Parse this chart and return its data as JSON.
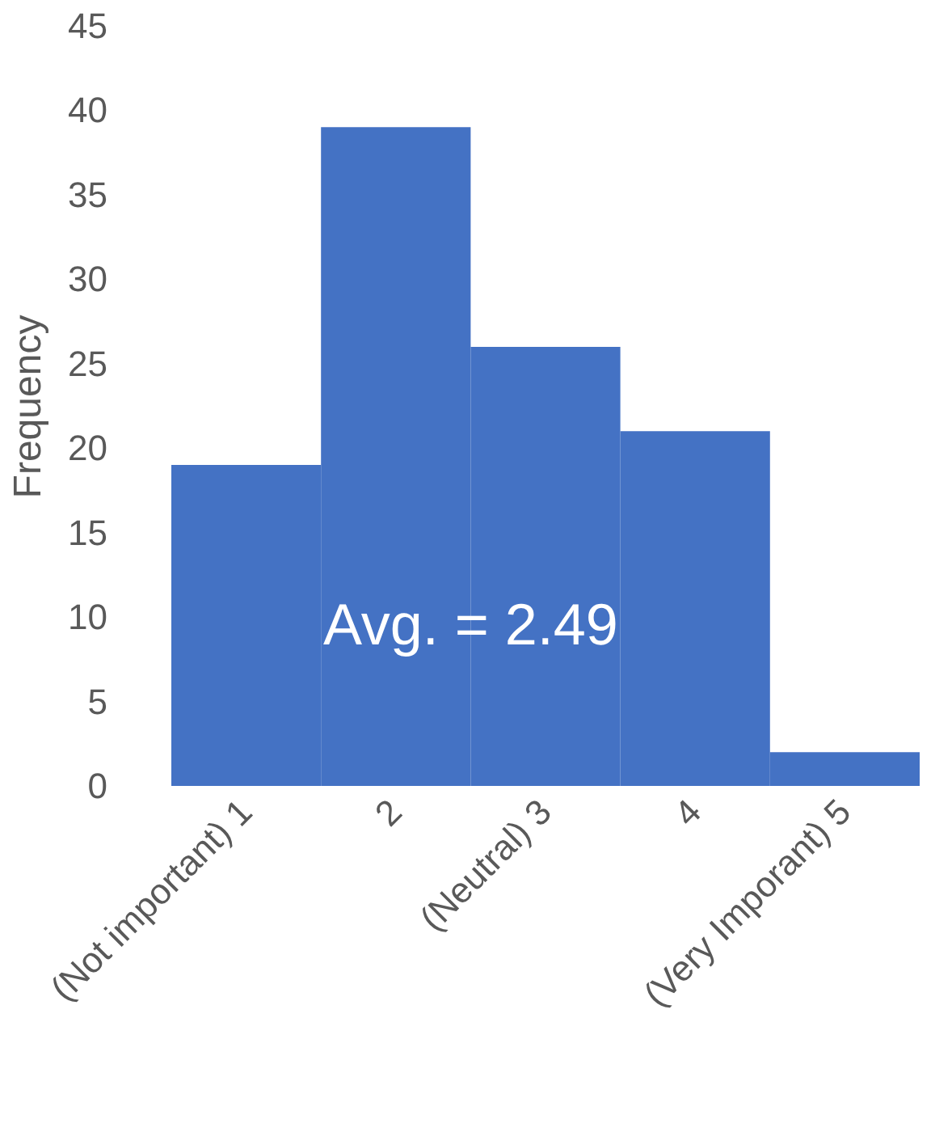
{
  "chart_data": {
    "type": "bar",
    "ylabel": "Frequency",
    "categories": [
      "(Not important) 1",
      "2",
      "(Neutral) 3",
      "4",
      "(Very Imporant) 5"
    ],
    "values": [
      19,
      39,
      26,
      21,
      2
    ],
    "color": "#4472c4",
    "ylim": [
      0,
      45
    ],
    "yticks": [
      0,
      5,
      10,
      15,
      20,
      25,
      30,
      35,
      40,
      45
    ],
    "grid": false,
    "annotations": [
      "Avg. = 2.49"
    ]
  }
}
